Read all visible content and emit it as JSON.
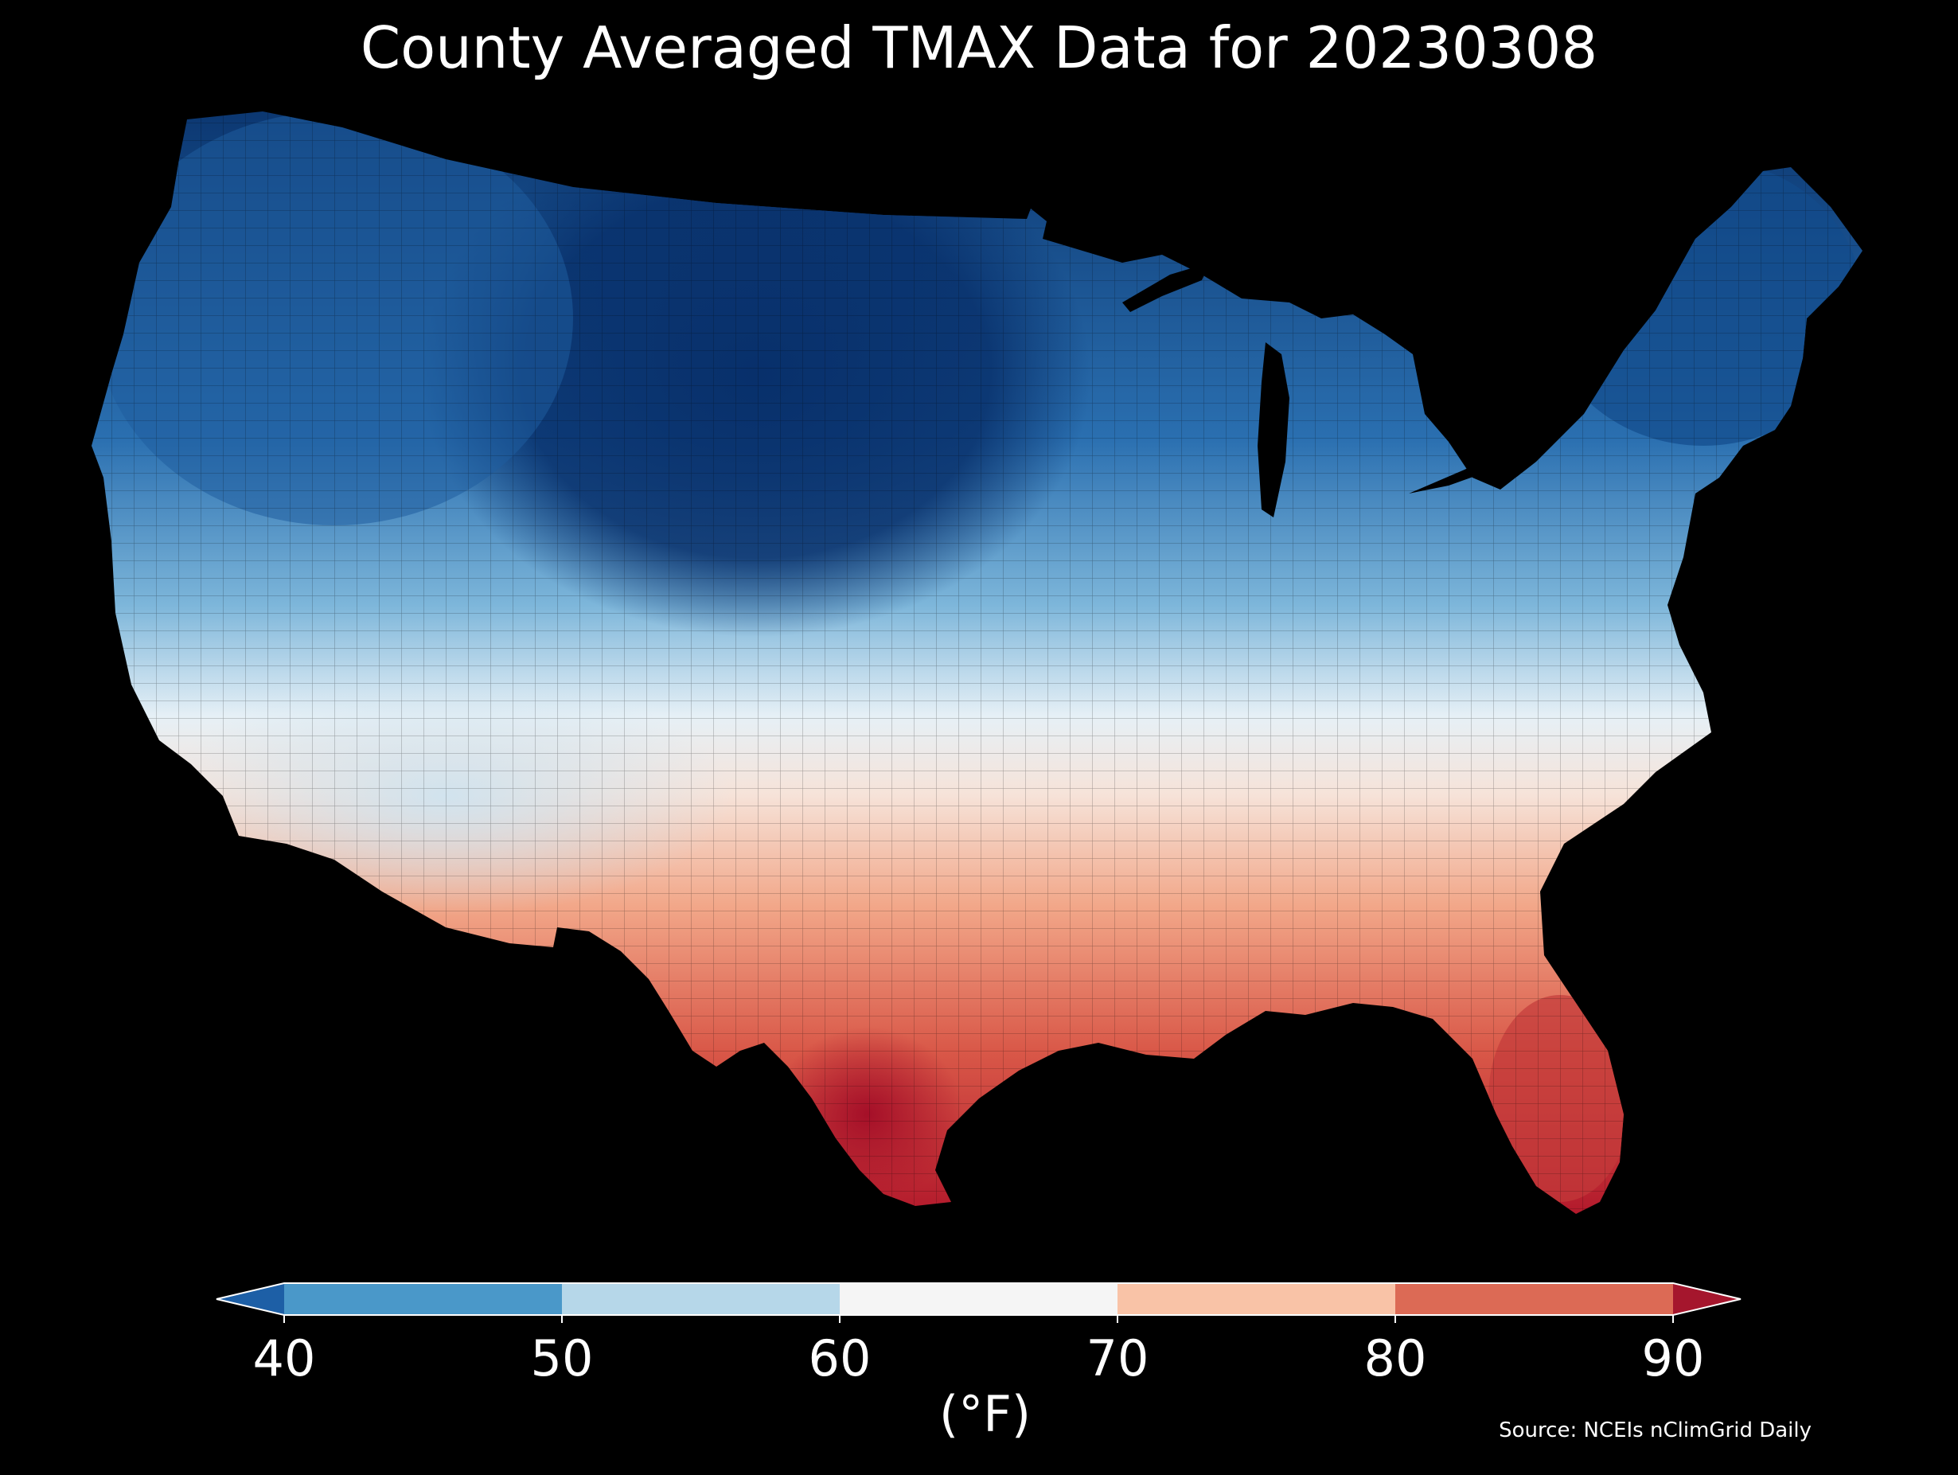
{
  "title": "County Averaged TMAX Data for 20230308",
  "colorbar": {
    "unit": "(°F)",
    "ticks": [
      "40",
      "50",
      "60",
      "70",
      "80",
      "90"
    ],
    "bins": [
      {
        "range": "<40",
        "color": "#1d5fa6"
      },
      {
        "range": "40-50",
        "color": "#4a98c9"
      },
      {
        "range": "50-60",
        "color": "#b6d7e9"
      },
      {
        "range": "60-70",
        "color": "#f5f5f5"
      },
      {
        "range": "70-80",
        "color": "#f9c3a7"
      },
      {
        "range": "80-90",
        "color": "#dc6a55"
      },
      {
        "range": ">90",
        "color": "#a5162d"
      }
    ],
    "extend": "both"
  },
  "source": "Source: NCEIs nClimGrid Daily",
  "map": {
    "region": "Contiguous United States",
    "variable": "TMAX",
    "units": "°F",
    "background": "#000000",
    "pattern": "cold (<40°F) across northern Plains and northern Rockies; 40-60°F across Northeast, Great Lakes, Midwest and West; 60-70°F band across the central US and interior Southwest; 70-90°F across the Southeast, Gulf Coast and Texas; warmest (>90°F) in south Texas"
  }
}
